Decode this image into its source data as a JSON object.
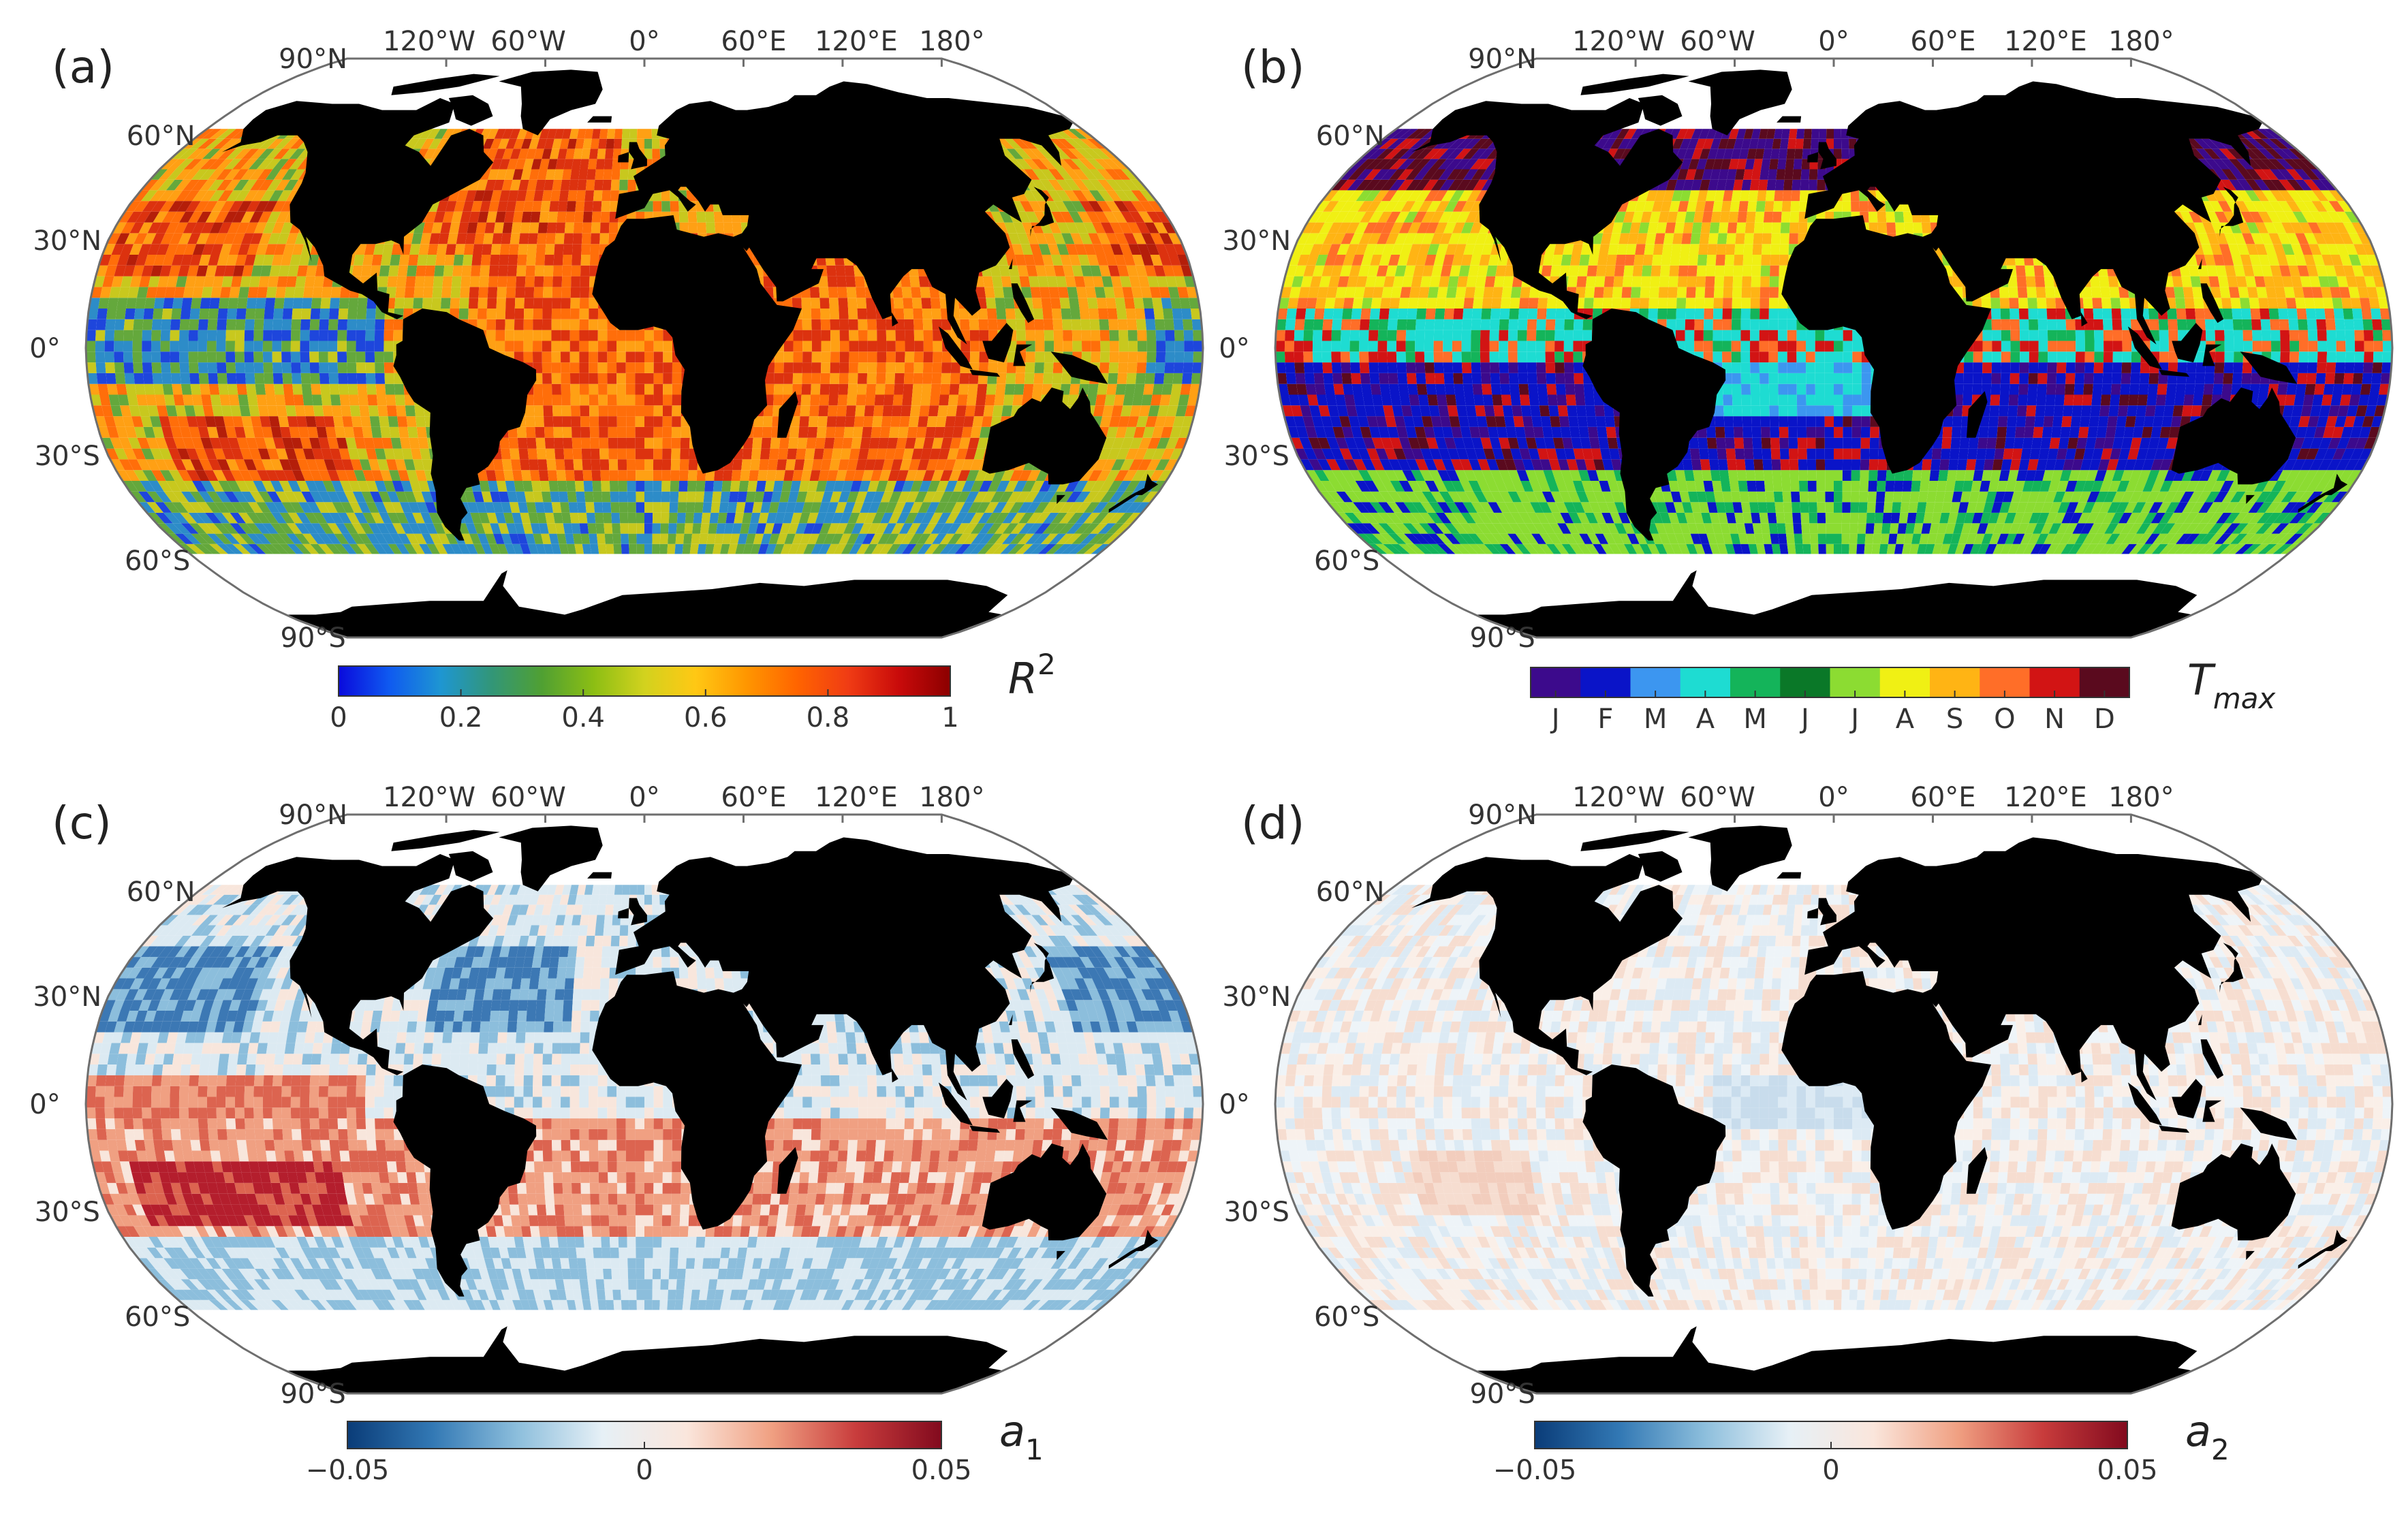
{
  "panels": [
    {
      "letter": "(a)",
      "colorbar_label_main": "R",
      "colorbar_label_sup": "2",
      "colorbar_label_sub": "",
      "colorbar_type": "continuous",
      "colorbar_stops": [
        "#0a0adc",
        "#0f5af0",
        "#1e96d2",
        "#329678",
        "#50a032",
        "#8cbe14",
        "#d2d21e",
        "#ffc814",
        "#ff9600",
        "#ff6400",
        "#f03c14",
        "#c80a0a",
        "#8c0000"
      ],
      "colorbar_ticks": [
        "0",
        "0.2",
        "0.4",
        "0.6",
        "0.8",
        "1"
      ],
      "ocean_colors": [
        "#1e46dc",
        "#2d8cc8",
        "#64a83c",
        "#c8c81e",
        "#ffa014",
        "#ff6e0a",
        "#dc320f",
        "#b41e0a"
      ]
    },
    {
      "letter": "(b)",
      "colorbar_label_main": "T",
      "colorbar_label_sup": "",
      "colorbar_label_sub": "max",
      "colorbar_type": "discrete",
      "colorbar_stops": [
        "#3c0a8c",
        "#0a14c8",
        "#3c96f0",
        "#1edcd2",
        "#14b45a",
        "#0a7828",
        "#8cdc32",
        "#f0f014",
        "#ffb414",
        "#ff6e28",
        "#d21414",
        "#5a0a1e"
      ],
      "colorbar_ticks": [
        "J",
        "F",
        "M",
        "A",
        "M",
        "J",
        "J",
        "A",
        "S",
        "O",
        "N",
        "D"
      ],
      "ocean_colors": [
        "#3c0a8c",
        "#0a14c8",
        "#3c96f0",
        "#1edcd2",
        "#14b45a",
        "#8cdc32",
        "#f0f014",
        "#ffb414",
        "#ff6e28",
        "#d21414",
        "#5a0a1e"
      ]
    },
    {
      "letter": "(c)",
      "colorbar_label_main": "a",
      "colorbar_label_sup": "",
      "colorbar_label_sub": "1",
      "colorbar_type": "continuous",
      "colorbar_stops": [
        "#0a3c78",
        "#3278b4",
        "#8cbedc",
        "#e6f0f6",
        "#fae6dc",
        "#f0a082",
        "#c83c3c",
        "#820a1e"
      ],
      "colorbar_ticks": [
        "−0.05",
        "0",
        "0.05"
      ],
      "ocean_colors": [
        "#3c78b4",
        "#8cbedc",
        "#dceaf2",
        "#f8e6dc",
        "#f0a082",
        "#dc6450",
        "#b41e2d"
      ]
    },
    {
      "letter": "(d)",
      "colorbar_label_main": "a",
      "colorbar_label_sup": "",
      "colorbar_label_sub": "2",
      "colorbar_type": "continuous",
      "colorbar_stops": [
        "#0a3c78",
        "#3278b4",
        "#8cbedc",
        "#e6f0f6",
        "#fae6dc",
        "#f0a082",
        "#c83c3c",
        "#820a1e"
      ],
      "colorbar_ticks": [
        "−0.05",
        "0",
        "0.05"
      ],
      "ocean_colors": [
        "#dceaf4",
        "#eef4f8",
        "#faefe8",
        "#f6ddd0",
        "#c8dcec",
        "#f2cdbd"
      ]
    }
  ],
  "map_labels": {
    "top_longitudes": [
      "120°W",
      "60°W",
      "0°",
      "60°E",
      "120°E",
      "180°"
    ],
    "latitudes": [
      "90°N",
      "60°N",
      "30°N",
      "0°",
      "30°S",
      "60°S",
      "90°S"
    ]
  },
  "colors": {
    "land": "#000000",
    "no_data": "#ffffff",
    "frame": "#6e6e6e",
    "text": "#333333"
  }
}
